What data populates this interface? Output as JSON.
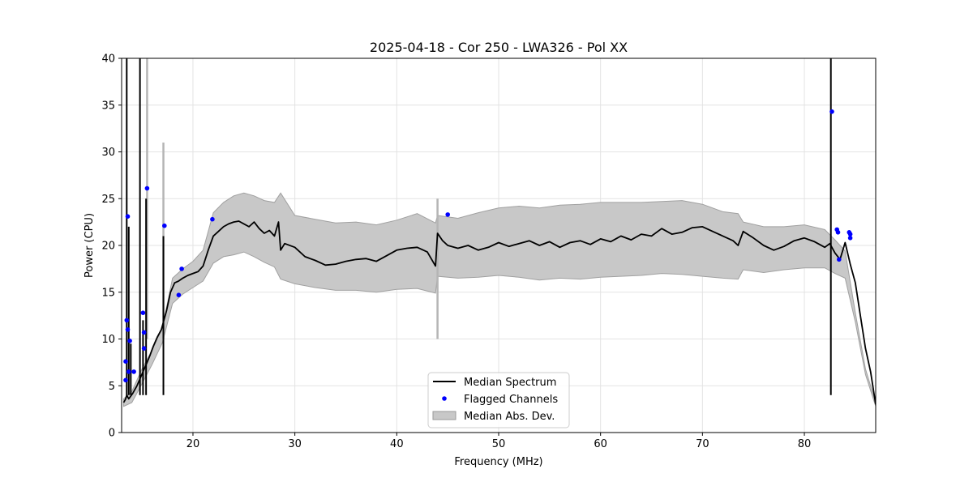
{
  "chart_data": {
    "type": "line",
    "title": "2025-04-18 - Cor 250 - LWA326 - Pol XX",
    "xlabel": "Frequency (MHz)",
    "ylabel": "Power (CPU)",
    "xlim": [
      13,
      87
    ],
    "ylim": [
      0,
      40
    ],
    "xticks": [
      20,
      30,
      40,
      50,
      60,
      70,
      80
    ],
    "yticks": [
      0,
      5,
      10,
      15,
      20,
      25,
      30,
      35,
      40
    ],
    "grid": true,
    "legend_position": "bottom-center",
    "legend": [
      {
        "label": "Median Spectrum",
        "kind": "line",
        "color": "#000000"
      },
      {
        "label": "Flagged Channels",
        "kind": "marker",
        "color": "#0000ff"
      },
      {
        "label": "Median Abs. Dev.",
        "kind": "band",
        "color": "#c8c8c8"
      }
    ],
    "median_spectrum": {
      "name": "Median Spectrum",
      "x": [
        13.2,
        13.4,
        13.5,
        13.6,
        13.7,
        13.9,
        14.1,
        14.3,
        14.5,
        14.7,
        14.9,
        15.1,
        15.3,
        15.5,
        15.8,
        16.1,
        16.5,
        16.9,
        17.1,
        17.4,
        17.8,
        18.2,
        18.6,
        19.0,
        19.5,
        20.0,
        20.5,
        21.0,
        21.5,
        22.0,
        22.5,
        23.0,
        23.5,
        24.0,
        24.5,
        25.0,
        25.5,
        26.0,
        26.5,
        27.0,
        27.5,
        28.0,
        28.4,
        28.6,
        29.0,
        30.0,
        31.0,
        32.0,
        33.0,
        34.0,
        35.0,
        36.0,
        37.0,
        38.0,
        39.0,
        40.0,
        41.0,
        42.0,
        43.0,
        43.8,
        44.0,
        44.5,
        45.0,
        46.0,
        47.0,
        48.0,
        49.0,
        50.0,
        51.0,
        52.0,
        53.0,
        54.0,
        55.0,
        56.0,
        57.0,
        58.0,
        59.0,
        60.0,
        61.0,
        62.0,
        63.0,
        64.0,
        65.0,
        66.0,
        67.0,
        68.0,
        69.0,
        70.0,
        71.0,
        72.0,
        73.0,
        73.5,
        74.0,
        75.0,
        76.0,
        77.0,
        78.0,
        79.0,
        80.0,
        81.0,
        82.0,
        82.5,
        83.0,
        83.5,
        84.0,
        84.5,
        85.0,
        85.5,
        86.0,
        86.5,
        87.0
      ],
      "values": [
        3.2,
        3.6,
        4.0,
        3.8,
        3.6,
        3.9,
        4.2,
        4.6,
        5.0,
        5.5,
        6.0,
        6.5,
        7.0,
        7.5,
        8.3,
        9.2,
        10.2,
        11.0,
        11.8,
        13.0,
        15.0,
        16.0,
        16.2,
        16.5,
        16.8,
        17.0,
        17.2,
        17.8,
        19.5,
        21.0,
        21.5,
        22.0,
        22.3,
        22.5,
        22.6,
        22.3,
        22.0,
        22.5,
        21.8,
        21.3,
        21.6,
        21.0,
        22.5,
        19.5,
        20.2,
        19.8,
        18.8,
        18.4,
        17.9,
        18.0,
        18.3,
        18.5,
        18.6,
        18.3,
        18.9,
        19.5,
        19.7,
        19.8,
        19.3,
        17.8,
        21.3,
        20.5,
        20.0,
        19.7,
        20.0,
        19.5,
        19.8,
        20.3,
        19.9,
        20.2,
        20.5,
        20.0,
        20.4,
        19.8,
        20.3,
        20.5,
        20.1,
        20.7,
        20.4,
        21.0,
        20.6,
        21.2,
        21.0,
        21.8,
        21.2,
        21.4,
        21.9,
        22.0,
        21.5,
        21.0,
        20.5,
        20.0,
        21.5,
        20.8,
        20.0,
        19.5,
        19.9,
        20.5,
        20.8,
        20.4,
        19.8,
        20.2,
        19.2,
        18.5,
        20.3,
        18.0,
        16.0,
        12.5,
        9.0,
        6.5,
        3.0
      ]
    },
    "mad_band": {
      "name": "Median Abs. Dev.",
      "x": [
        13.2,
        14.0,
        15.0,
        16.0,
        17.0,
        18.0,
        19.0,
        20.0,
        21.0,
        22.0,
        23.0,
        24.0,
        25.0,
        26.0,
        27.0,
        28.0,
        28.6,
        30.0,
        32.0,
        34.0,
        36.0,
        38.0,
        40.0,
        42.0,
        43.8,
        44.0,
        46.0,
        48.0,
        50.0,
        52.0,
        54.0,
        56.0,
        58.0,
        60.0,
        62.0,
        64.0,
        66.0,
        68.0,
        70.0,
        72.0,
        73.5,
        74.0,
        76.0,
        78.0,
        80.0,
        82.0,
        83.0,
        84.0,
        85.0,
        86.0,
        87.0
      ],
      "upper": [
        3.6,
        4.4,
        6.8,
        8.8,
        11.2,
        16.5,
        17.5,
        18.3,
        19.5,
        23.5,
        24.6,
        25.3,
        25.6,
        25.3,
        24.8,
        24.6,
        25.6,
        23.2,
        22.8,
        22.4,
        22.5,
        22.2,
        22.7,
        23.4,
        22.4,
        23.2,
        22.9,
        23.5,
        24.0,
        24.2,
        24.0,
        24.3,
        24.4,
        24.6,
        24.6,
        24.6,
        24.7,
        24.8,
        24.4,
        23.6,
        23.4,
        22.5,
        22.0,
        22.0,
        22.2,
        21.7,
        20.6,
        19.4,
        12.8,
        6.8,
        3.2
      ],
      "lower": [
        2.8,
        3.2,
        5.2,
        7.3,
        9.6,
        13.8,
        14.8,
        15.5,
        16.2,
        18.1,
        18.8,
        19.0,
        19.3,
        18.8,
        18.2,
        17.7,
        16.4,
        15.9,
        15.5,
        15.2,
        15.2,
        15.0,
        15.3,
        15.4,
        14.9,
        16.7,
        16.5,
        16.6,
        16.8,
        16.6,
        16.3,
        16.5,
        16.4,
        16.6,
        16.7,
        16.8,
        17.0,
        16.9,
        16.7,
        16.5,
        16.4,
        17.4,
        17.1,
        17.4,
        17.6,
        17.6,
        17.0,
        16.5,
        11.8,
        6.2,
        2.8
      ]
    },
    "spikes": [
      {
        "x": 13.5,
        "top": 40
      },
      {
        "x": 13.7,
        "top": 22.0
      },
      {
        "x": 13.9,
        "top": 9.5
      },
      {
        "x": 14.8,
        "top": 40
      },
      {
        "x": 15.1,
        "top": 12.0
      },
      {
        "x": 15.4,
        "top": 25.0
      },
      {
        "x": 17.1,
        "top": 21.0
      },
      {
        "x": 82.6,
        "top": 40
      }
    ],
    "band_spikes": [
      {
        "x": 15.5,
        "top": 40
      },
      {
        "x": 17.1,
        "top": 31.0
      },
      {
        "x": 44.0,
        "top": 25.0
      }
    ],
    "flagged_channels": {
      "name": "Flagged Channels",
      "x": [
        13.4,
        13.4,
        13.5,
        13.6,
        13.6,
        13.7,
        13.8,
        14.2,
        15.1,
        15.2,
        15.2,
        15.5,
        17.2,
        18.6,
        18.9,
        21.9,
        45.0,
        82.7,
        83.2,
        83.3,
        83.4,
        84.4,
        84.5,
        84.5
      ],
      "y": [
        5.6,
        7.6,
        12.0,
        11.0,
        23.1,
        6.5,
        9.8,
        6.5,
        12.8,
        10.7,
        9.0,
        26.1,
        22.1,
        14.7,
        17.5,
        22.8,
        23.3,
        34.3,
        21.7,
        21.4,
        18.5,
        21.4,
        21.2,
        20.8
      ]
    }
  }
}
